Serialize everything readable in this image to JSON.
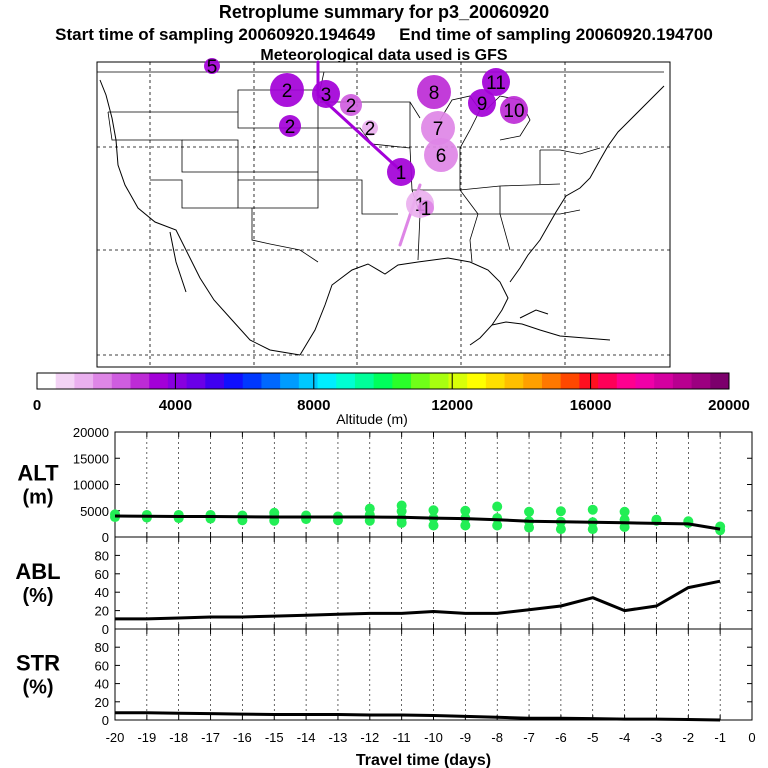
{
  "header": {
    "title": "Retroplume summary for p3_20060920",
    "start_label": "Start time of sampling 20060920.194649",
    "end_label": "End time of sampling 20060920.194700",
    "met_label": "Meteorological data used is GFS"
  },
  "colorbar": {
    "title": "Altitude (m)",
    "ticks": [
      "0",
      "4000",
      "8000",
      "12000",
      "16000",
      "20000"
    ],
    "colors": [
      "#ffffff",
      "#f3d3f5",
      "#eab0ef",
      "#de86e6",
      "#cf5de0",
      "#bd2bd6",
      "#a300d8",
      "#8800e0",
      "#6a00e8",
      "#3f00f0",
      "#1010ff",
      "#0038ff",
      "#0068ff",
      "#009cff",
      "#00c8ff",
      "#00eeff",
      "#00ffd2",
      "#00ff9a",
      "#00ff5c",
      "#2aff2a",
      "#70ff18",
      "#a8ff10",
      "#d8ff08",
      "#ffff00",
      "#ffe000",
      "#ffc000",
      "#ffa000",
      "#ff7800",
      "#ff4800",
      "#ff1020",
      "#ff0058",
      "#ff0090",
      "#f000a8",
      "#d400a0",
      "#b80090",
      "#9c0080",
      "#7c006c"
    ]
  },
  "map": {
    "clusters": [
      {
        "label": "2",
        "size": "large",
        "color": "#a300d8"
      },
      {
        "label": "3",
        "size": "medium",
        "color": "#a300d8"
      },
      {
        "label": "2",
        "size": "small",
        "color": "#cf5de0"
      },
      {
        "label": "2",
        "size": "small",
        "color": "#a300d8"
      },
      {
        "label": "2",
        "size": "tiny",
        "color": "#eab0ef"
      },
      {
        "label": "8",
        "size": "large",
        "color": "#bd2bd6"
      },
      {
        "label": "7",
        "size": "large",
        "color": "#de86e6"
      },
      {
        "label": "6",
        "size": "large",
        "color": "#de86e6"
      },
      {
        "label": "9",
        "size": "medium",
        "color": "#a300d8"
      },
      {
        "label": "11",
        "size": "medium",
        "color": "#a300d8"
      },
      {
        "label": "10",
        "size": "medium",
        "color": "#bd2bd6"
      },
      {
        "label": "1",
        "size": "medium",
        "color": "#a300d8"
      },
      {
        "label": "1",
        "size": "medium",
        "color": "#eab0ef"
      },
      {
        "label": "1",
        "size": "tiny",
        "color": "#de86e6"
      },
      {
        "label": "5",
        "size": "tiny",
        "color": "#a300d8"
      }
    ]
  },
  "chart_data": [
    {
      "type": "line",
      "panel": "ALT",
      "ylabel": "ALT (m)",
      "ylabel_lines": [
        "ALT",
        "(m)"
      ],
      "ylim": [
        0,
        20000
      ],
      "yticks": [
        "0",
        "5000",
        "10000",
        "15000",
        "20000"
      ],
      "x": [
        -20,
        -19,
        -18,
        -17,
        -16,
        -15,
        -14,
        -13,
        -12,
        -11,
        -10,
        -9,
        -8,
        -7,
        -6,
        -5,
        -4,
        -3,
        -2,
        -1
      ],
      "mean_line": [
        4000,
        3950,
        3900,
        3900,
        3850,
        3800,
        3800,
        3800,
        3800,
        3750,
        3600,
        3500,
        3300,
        3000,
        2900,
        2800,
        2700,
        2600,
        2500,
        1500
      ],
      "scatter_color": "#22ee55",
      "scatter_points": [
        [
          -20,
          3800
        ],
        [
          -20,
          4300
        ],
        [
          -19,
          3700
        ],
        [
          -19,
          4200
        ],
        [
          -18,
          3600
        ],
        [
          -18,
          4200
        ],
        [
          -17,
          3500
        ],
        [
          -17,
          4200
        ],
        [
          -16,
          3200
        ],
        [
          -16,
          4100
        ],
        [
          -15,
          3100
        ],
        [
          -15,
          4000
        ],
        [
          -15,
          4600
        ],
        [
          -14,
          3400
        ],
        [
          -14,
          4100
        ],
        [
          -13,
          3200
        ],
        [
          -13,
          3900
        ],
        [
          -12,
          3100
        ],
        [
          -12,
          4200
        ],
        [
          -12,
          5400
        ],
        [
          -11,
          2700
        ],
        [
          -11,
          3600
        ],
        [
          -11,
          4900
        ],
        [
          -11,
          6000
        ],
        [
          -10,
          2200
        ],
        [
          -10,
          3600
        ],
        [
          -10,
          5100
        ],
        [
          -9,
          2200
        ],
        [
          -9,
          3600
        ],
        [
          -9,
          5000
        ],
        [
          -8,
          2200
        ],
        [
          -8,
          3600
        ],
        [
          -8,
          5800
        ],
        [
          -7,
          1800
        ],
        [
          -7,
          3000
        ],
        [
          -7,
          4800
        ],
        [
          -6,
          1500
        ],
        [
          -6,
          2900
        ],
        [
          -6,
          4900
        ],
        [
          -5,
          1500
        ],
        [
          -5,
          2800
        ],
        [
          -5,
          5200
        ],
        [
          -4,
          1900
        ],
        [
          -4,
          3300
        ],
        [
          -4,
          4800
        ],
        [
          -3,
          3100
        ],
        [
          -3,
          3300
        ],
        [
          -2,
          2700
        ],
        [
          -2,
          3000
        ],
        [
          -1,
          1300
        ],
        [
          -1,
          2000
        ]
      ]
    },
    {
      "type": "line",
      "panel": "ABL",
      "ylabel": "ABL (%)",
      "ylabel_lines": [
        "ABL",
        "(%)"
      ],
      "ylim": [
        0,
        100
      ],
      "yticks": [
        "0",
        "20",
        "40",
        "60",
        "80"
      ],
      "x": [
        -20,
        -19,
        -18,
        -17,
        -16,
        -15,
        -14,
        -13,
        -12,
        -11,
        -10,
        -9,
        -8,
        -7,
        -6,
        -5,
        -4,
        -3,
        -2,
        -1
      ],
      "values": [
        11,
        11,
        12,
        13,
        13,
        14,
        15,
        16,
        17,
        17,
        19,
        17,
        17,
        21,
        25,
        34,
        20,
        25,
        45,
        52
      ]
    },
    {
      "type": "line",
      "panel": "STR",
      "ylabel": "STR (%)",
      "ylabel_lines": [
        "STR",
        "(%)"
      ],
      "ylim": [
        0,
        100
      ],
      "yticks": [
        "0",
        "20",
        "40",
        "60",
        "80"
      ],
      "x": [
        -20,
        -19,
        -18,
        -17,
        -16,
        -15,
        -14,
        -13,
        -12,
        -11,
        -10,
        -9,
        -8,
        -7,
        -6,
        -5,
        -4,
        -3,
        -2,
        -1
      ],
      "values": [
        8,
        8,
        7.5,
        7,
        6.5,
        6,
        6,
        6,
        5.5,
        5.5,
        5,
        4,
        3,
        2,
        2,
        1.5,
        1,
        1,
        0.5,
        0
      ],
      "xlabel": "Travel time (days)",
      "xticks": [
        "-20",
        "-19",
        "-18",
        "-17",
        "-16",
        "-15",
        "-14",
        "-13",
        "-12",
        "-11",
        "-10",
        "-9",
        "-8",
        "-7",
        "-6",
        "-5",
        "-4",
        "-3",
        "-2",
        "-1",
        "0"
      ]
    }
  ]
}
